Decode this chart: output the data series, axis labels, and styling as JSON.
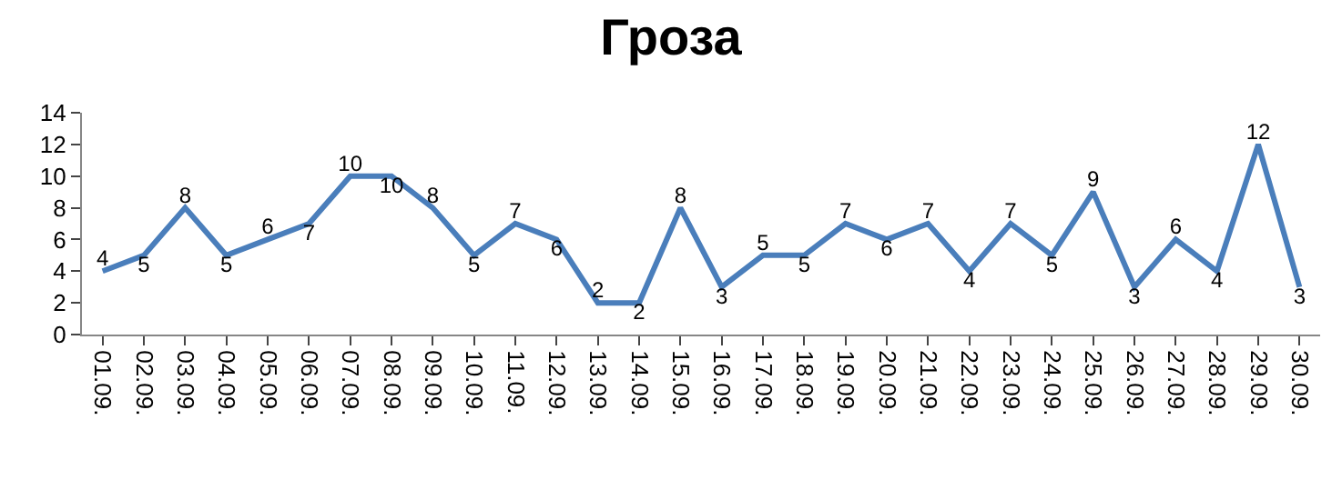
{
  "chart_data": {
    "type": "line",
    "title": "Гроза",
    "categories": [
      "01.09.",
      "02.09.",
      "03.09.",
      "04.09.",
      "05.09.",
      "06.09.",
      "07.09.",
      "08.09.",
      "09.09.",
      "10.09.",
      "11.09.",
      "12.09.",
      "13.09.",
      "14.09.",
      "15.09.",
      "16.09.",
      "17.09.",
      "18.09.",
      "19.09.",
      "20.09.",
      "21.09.",
      "22.09.",
      "23.09.",
      "24.09.",
      "25.09.",
      "26.09.",
      "27.09.",
      "28.09.",
      "29.09.",
      "30.09."
    ],
    "series": [
      {
        "color": "#4a7ebb",
        "values": [
          4,
          5,
          8,
          5,
          6,
          7,
          10,
          10,
          8,
          5,
          7,
          6,
          2,
          2,
          8,
          3,
          5,
          5,
          7,
          6,
          7,
          4,
          7,
          5,
          9,
          3,
          6,
          4,
          12,
          3
        ]
      }
    ],
    "ylim": [
      0,
      14
    ],
    "yticks": [
      0,
      2,
      4,
      6,
      8,
      10,
      12,
      14
    ],
    "marker": "none",
    "line_style": "solid",
    "data_labels": true
  }
}
